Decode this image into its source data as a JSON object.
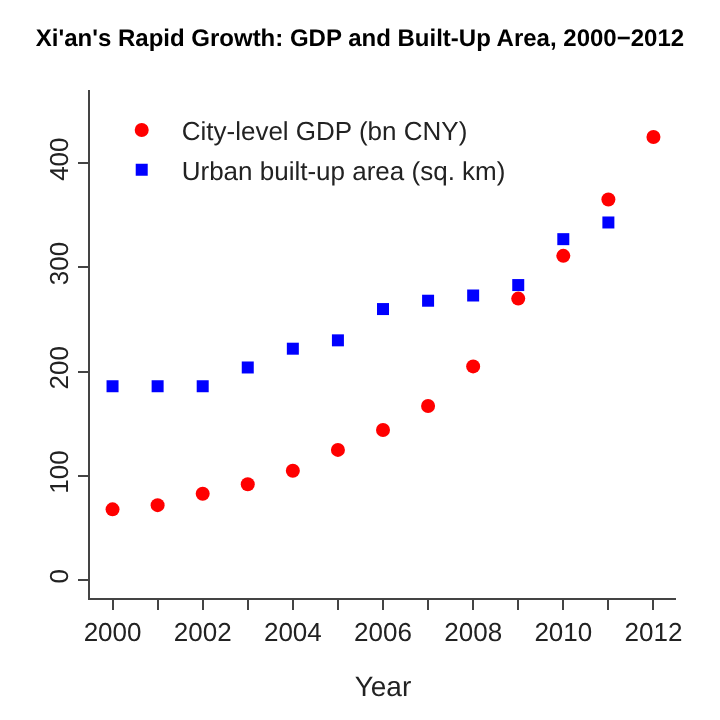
{
  "chart_data": {
    "type": "scatter",
    "title": "Xi'an's Rapid Growth: GDP and Built-Up Area, 2000−2012",
    "xlabel": "Year",
    "x": [
      2000,
      2001,
      2002,
      2003,
      2004,
      2005,
      2006,
      2007,
      2008,
      2009,
      2010,
      2011,
      2012
    ],
    "series": [
      {
        "name": "City-level GDP (bn CNY)",
        "color": "#ff0000",
        "marker": "circle",
        "values": [
          68,
          72,
          83,
          92,
          105,
          125,
          144,
          167,
          205,
          270,
          311,
          365,
          425
        ]
      },
      {
        "name": "Urban built-up area (sq. km)",
        "color": "#0000ff",
        "marker": "square",
        "values": [
          186,
          186,
          186,
          204,
          222,
          230,
          260,
          268,
          273,
          283,
          327,
          343,
          null
        ]
      }
    ],
    "xlim": [
      1999.5,
      2012.5
    ],
    "xticks": [
      2000,
      {
        "value": 2001,
        "label": null
      },
      2002,
      {
        "value": 2003,
        "label": null
      },
      2004,
      {
        "value": 2005,
        "label": null
      },
      2006,
      {
        "value": 2007,
        "label": null
      },
      2008,
      {
        "value": 2009,
        "label": null
      },
      2010,
      {
        "value": 2011,
        "label": null
      },
      2012
    ],
    "ylim": [
      -17,
      470
    ],
    "yticks": [
      0,
      100,
      200,
      300,
      400
    ],
    "legend": "top left"
  }
}
